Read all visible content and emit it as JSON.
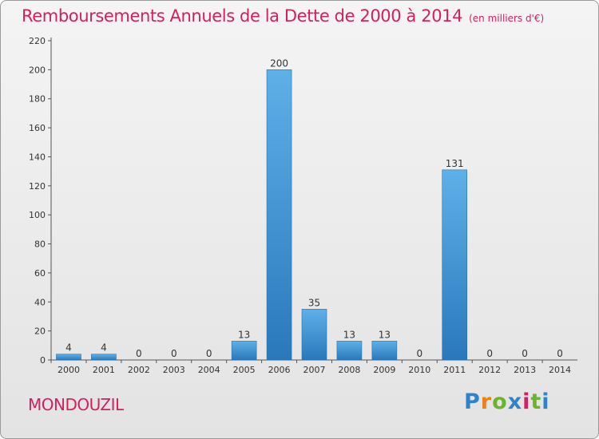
{
  "title": "Remboursements Annuels de la Dette de 2000 à 2014",
  "unit": "(en milliers d'€)",
  "commune": "MONDOUZIL",
  "logo": [
    "P",
    "r",
    "o",
    "x",
    "i",
    "t",
    "i"
  ],
  "colors": {
    "title": "#d1215f",
    "bar_top": "#5eb0e8",
    "bar_bottom": "#2a78bb"
  },
  "chart_data": {
    "type": "bar",
    "categories": [
      "2000",
      "2001",
      "2002",
      "2003",
      "2004",
      "2005",
      "2006",
      "2007",
      "2008",
      "2009",
      "2010",
      "2011",
      "2012",
      "2013",
      "2014"
    ],
    "values": [
      4,
      4,
      0,
      0,
      0,
      13,
      200,
      35,
      13,
      13,
      0,
      131,
      0,
      0,
      0
    ],
    "data_labels": [
      "4",
      "4",
      "0",
      "0",
      "0",
      "13",
      "200",
      "35",
      "13",
      "13",
      "0",
      "131",
      "0",
      "0",
      "0"
    ],
    "yticks": [
      0,
      20,
      40,
      60,
      80,
      100,
      120,
      140,
      160,
      180,
      200,
      220
    ],
    "ylim": [
      0,
      220
    ],
    "grid": false,
    "legend": "none"
  }
}
